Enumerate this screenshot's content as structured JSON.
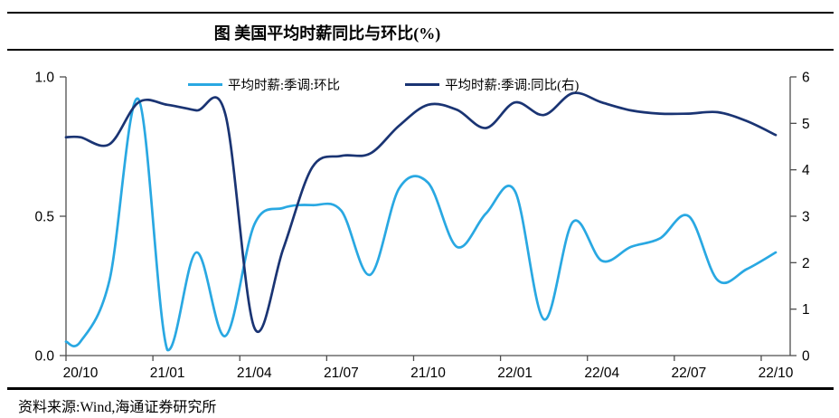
{
  "page": {
    "title": "图  美国平均时薪同比与环比(%)",
    "source": "资料来源:Wind,海通证券研究所"
  },
  "chart_data": {
    "type": "line",
    "title": "图  美国平均时薪同比与环比(%)",
    "legend_position": "top",
    "grid": "off",
    "categories": [
      "20/10",
      "20/11",
      "20/12",
      "21/01",
      "21/02",
      "21/03",
      "21/04",
      "21/05",
      "21/06",
      "21/07",
      "21/08",
      "21/09",
      "21/10",
      "21/11",
      "21/12",
      "22/01",
      "22/02",
      "22/03",
      "22/04",
      "22/05",
      "22/06",
      "22/07",
      "22/08",
      "22/09",
      "22/10"
    ],
    "x_tick_labels": [
      "20/10",
      "21/01",
      "21/04",
      "21/07",
      "21/10",
      "22/01",
      "22/04",
      "22/07",
      "22/10"
    ],
    "left_axis": {
      "min": 0,
      "max": 1,
      "ticks": [
        "0.0",
        "0.5",
        "1.0"
      ]
    },
    "right_axis": {
      "min": 0,
      "max": 6,
      "ticks": [
        "0",
        "1",
        "2",
        "3",
        "4",
        "5",
        "6"
      ]
    },
    "series": [
      {
        "name": "平均时薪:季调:环比",
        "axis": "left",
        "color": "#29A8E2",
        "values": [
          0.05,
          0.27,
          0.92,
          0.02,
          0.37,
          0.07,
          0.47,
          0.53,
          0.54,
          0.52,
          0.29,
          0.6,
          0.62,
          0.39,
          0.51,
          0.59,
          0.13,
          0.48,
          0.34,
          0.39,
          0.42,
          0.5,
          0.27,
          0.31,
          0.37
        ]
      },
      {
        "name": "平均时薪:季调:同比(右)",
        "axis": "right",
        "color": "#1A3473",
        "values": [
          4.7,
          4.55,
          5.45,
          5.4,
          5.28,
          5.2,
          0.6,
          2.3,
          4.05,
          4.3,
          4.35,
          4.95,
          5.4,
          5.29,
          4.9,
          5.45,
          5.18,
          5.65,
          5.45,
          5.28,
          5.21,
          5.21,
          5.24,
          5.05,
          4.75
        ]
      }
    ]
  }
}
